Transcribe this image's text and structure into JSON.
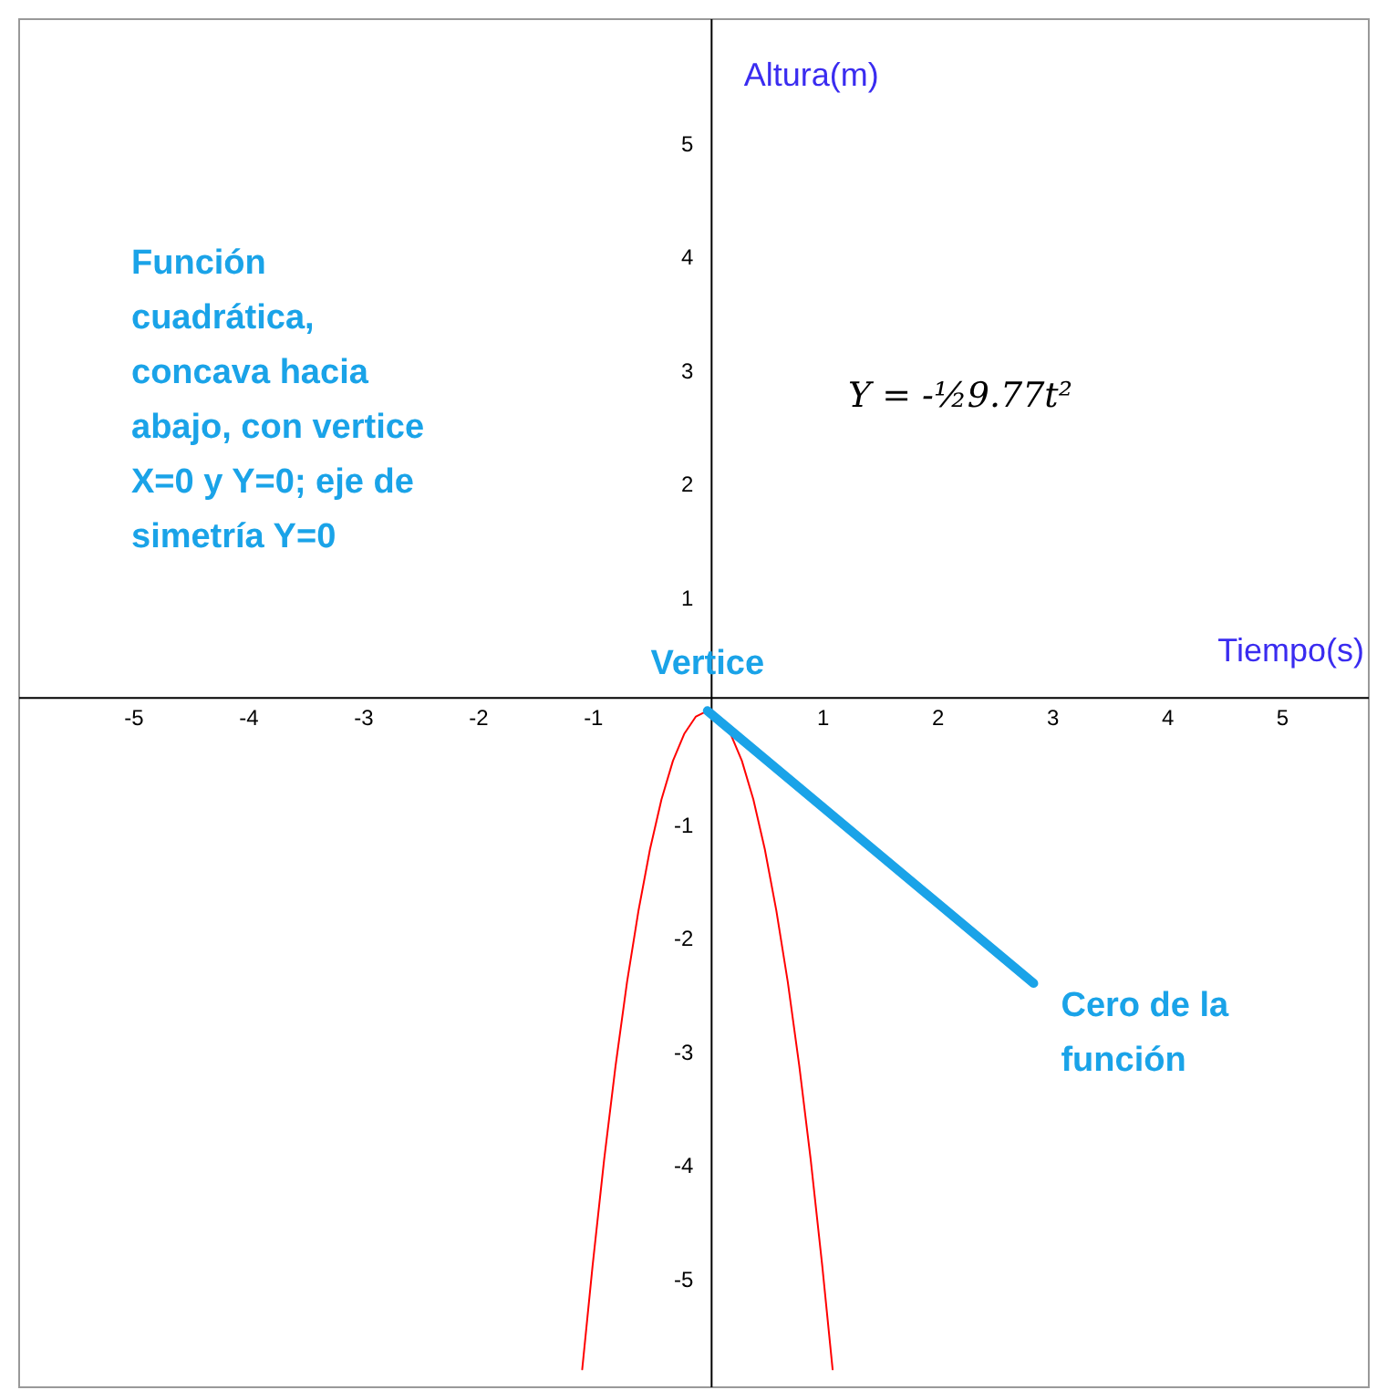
{
  "chart_data": {
    "type": "line",
    "xlabel": "Tiempo(s)",
    "ylabel": "Altura(m)",
    "annotations": [
      "Función cuadrática, concava hacia abajo, con vertice X=0 y Y=0; eje de simetría Y=0",
      "Y = -½9.77t²",
      {
        "text": "Vertice",
        "x": 0,
        "y": 0
      },
      {
        "text": "Cero de la función",
        "x": 2.84,
        "y": -2.4
      }
    ],
    "series": [
      {
        "color": "#ff0000",
        "x": [
          -1.09,
          -1.0,
          -0.9,
          -0.8,
          -0.7,
          -0.6,
          -0.5,
          -0.4,
          -0.3,
          -0.2,
          -0.1,
          0,
          0.1,
          0.2,
          0.3,
          0.4,
          0.5,
          0.6,
          0.7,
          0.8,
          0.9,
          1.0,
          1.09
        ],
        "values": [
          -5.8,
          -4.89,
          -3.96,
          -3.13,
          -2.39,
          -1.76,
          -1.22,
          -0.78,
          -0.44,
          -0.2,
          -0.05,
          0,
          null,
          -0.2,
          -0.44,
          -0.78,
          -1.22,
          -1.76,
          -2.39,
          -3.13,
          -3.96,
          -4.89,
          -5.8
        ]
      },
      {
        "color": "#1aa3e8",
        "x": [
          0,
          2.84
        ],
        "values": [
          0,
          -2.4
        ]
      }
    ],
    "xlim": [
      -6.0,
      5.75
    ],
    "ylim": [
      -5.95,
      6.1
    ],
    "xticks": [
      -5,
      -4,
      -3,
      -2,
      -1,
      1,
      2,
      3,
      4,
      5
    ],
    "yticks": [
      -5,
      -4,
      -3,
      -2,
      -1,
      1,
      2,
      3,
      4,
      5
    ]
  }
}
